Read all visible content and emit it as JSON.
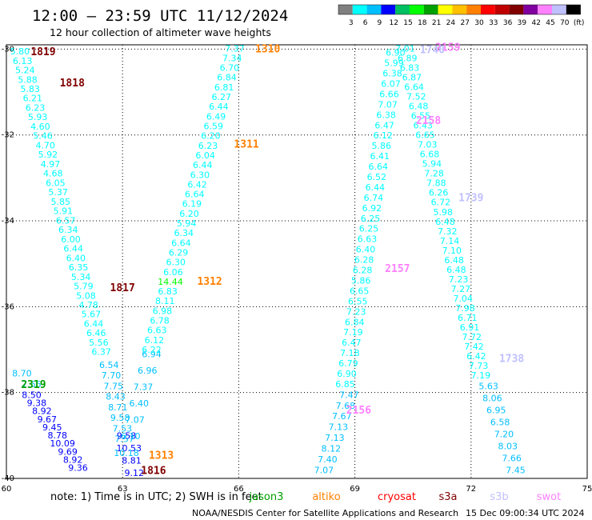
{
  "header": {
    "title": "12:00 — 23:59 UTC 11/12/2024",
    "subtitle": "12 hour collection of altimeter wave heights"
  },
  "colorbar": {
    "labels": [
      "3",
      "6",
      "9",
      "12",
      "15",
      "18",
      "21",
      "24",
      "27",
      "30",
      "33",
      "36",
      "39",
      "42",
      "45",
      "70",
      "(ft)"
    ],
    "colors": [
      "#808080",
      "#00ffff",
      "#00bfff",
      "#0000ff",
      "#00bf60",
      "#00ff00",
      "#00a000",
      "#ffff00",
      "#ffc000",
      "#ff8000",
      "#ff0000",
      "#c00000",
      "#800000",
      "#8000a0",
      "#ff80ff",
      "#c0c0ff",
      "#000000"
    ]
  },
  "axes": {
    "lon_ticks": [
      "60",
      "63",
      "66",
      "69",
      "72",
      "75"
    ],
    "lat_ticks": [
      "-30",
      "-32",
      "-34",
      "-36",
      "-38",
      "-40"
    ]
  },
  "passes": [
    {
      "id": "1819",
      "color": "#800000",
      "lon": 60.95,
      "lat": -30.05
    },
    {
      "id": "1818",
      "color": "#800000",
      "lon": 61.7,
      "lat": -30.78
    },
    {
      "id": "1817",
      "color": "#800000",
      "lon": 63.0,
      "lat": -35.55
    },
    {
      "id": "1816",
      "color": "#800000",
      "lon": 63.8,
      "lat": -39.8
    },
    {
      "id": "2319",
      "color": "#00a000",
      "lon": 60.7,
      "lat": -37.8
    },
    {
      "id": "1310",
      "color": "#ff8000",
      "lon": 66.75,
      "lat": -29.98
    },
    {
      "id": "1311",
      "color": "#ff8000",
      "lon": 66.2,
      "lat": -32.2
    },
    {
      "id": "1312",
      "color": "#ff8000",
      "lon": 65.25,
      "lat": -35.4
    },
    {
      "id": "1313",
      "color": "#ff8000",
      "lon": 64.0,
      "lat": -39.45
    },
    {
      "id": "2159",
      "color": "#ff80ff",
      "lon": 71.4,
      "lat": -29.95
    },
    {
      "id": "2158",
      "color": "#ff80ff",
      "lon": 70.9,
      "lat": -31.65
    },
    {
      "id": "2157",
      "color": "#ff80ff",
      "lon": 70.1,
      "lat": -35.1
    },
    {
      "id": "2156",
      "color": "#ff80ff",
      "lon": 69.1,
      "lat": -38.4
    },
    {
      "id": "1740",
      "color": "#c0c0ff",
      "lon": 71.0,
      "lat": -30.0
    },
    {
      "id": "1739",
      "color": "#c0c0ff",
      "lon": 72.0,
      "lat": -33.45
    },
    {
      "id": "1738",
      "color": "#c0c0ff",
      "lon": 73.05,
      "lat": -37.2
    }
  ],
  "tracks": [
    {
      "color": "#00ffff",
      "lon_start": 60.35,
      "lat_start": -30.05,
      "lon_end": 62.45,
      "lat_end": -37.05,
      "values": [
        "5.80",
        "6.13",
        "5.24",
        "5.88",
        "5.83",
        "6.21",
        "6.23",
        "5.93",
        "4.60",
        "5.46",
        "4.70",
        "5.92",
        "4.97",
        "4.68",
        "6.05",
        "5.37",
        "5.85",
        "5.91",
        "6.57",
        "6.34",
        "6.00",
        "6.44",
        "6.40",
        "6.35",
        "5.34",
        "5.79",
        "5.08",
        "4.78",
        "5.67",
        "6.44",
        "6.46",
        "5.56",
        "6.37"
      ]
    },
    {
      "color": "#00bfff",
      "lon_start": 60.4,
      "lat_start": -37.55,
      "lon_end": 60.65,
      "lat_end": -37.8,
      "values": [
        "8.70",
        "7.55"
      ]
    },
    {
      "color": "#00bfff",
      "lon_start": 62.65,
      "lat_start": -37.35,
      "lon_end": 63.05,
      "lat_end": -39.08,
      "values": [
        "6.54",
        "7.70",
        "7.75",
        "8.43",
        "8.71",
        "9.58",
        "7.53",
        "7.57"
      ]
    },
    {
      "color": "#0000ff",
      "lon_start": 60.65,
      "lat_start": -38.05,
      "lon_end": 61.85,
      "lat_end": -39.75,
      "values": [
        "8.50",
        "9.38",
        "8.92",
        "9.67",
        "9.45",
        "8.78",
        "10.09",
        "9.69",
        "8.92",
        "9.36"
      ]
    },
    {
      "color": "#0000ff",
      "lon_start": 63.1,
      "lat_start": -39.0,
      "lon_end": 63.3,
      "lat_end": -39.87,
      "values": [
        "9.58",
        "10.53",
        "8.81",
        "9.12"
      ]
    },
    {
      "color": "#00bfff",
      "lon_start": 63.75,
      "lat_start": -37.1,
      "lon_end": 63.1,
      "lat_end": -39.4,
      "values": [
        "6.94",
        "6.96",
        "7.37",
        "6.40",
        "7.07",
        "6.10",
        "10.18"
      ]
    },
    {
      "color": "#00ffff",
      "lon_start": 65.9,
      "lat_start": -29.98,
      "lon_end": 63.75,
      "lat_end": -37.0,
      "values": [
        "7.37",
        "7.34",
        "6.70",
        "6.84",
        "6.81",
        "6.27",
        "6.44",
        "6.49",
        "6.59",
        "6.20",
        "6.23",
        "6.04",
        "6.44",
        "6.30",
        "6.42",
        "6.64",
        "6.19",
        "6.20",
        "5.94",
        "6.34",
        "6.64",
        "6.29",
        "6.30",
        "6.06",
        "14.44",
        "6.83",
        "8.11",
        "6.98",
        "6.78",
        "6.63",
        "6.12",
        "6.22"
      ]
    },
    {
      "color": "#00ffff",
      "lon_start": 70.05,
      "lat_start": -30.08,
      "lon_end": 68.75,
      "lat_end": -37.8,
      "values": [
        "6.90",
        "5.99",
        "6.38",
        "6.07",
        "6.66",
        "7.07",
        "6.38",
        "6.47",
        "6.12",
        "5.86",
        "6.41",
        "6.64",
        "6.52",
        "6.44",
        "6.74",
        "6.92",
        "6.25",
        "6.25",
        "6.63",
        "6.40",
        "6.28",
        "6.28",
        "5.86",
        "6.65",
        "6.55",
        "7.23",
        "6.84",
        "7.19",
        "6.47",
        "7.18",
        "6.79",
        "6.90",
        "6.85"
      ]
    },
    {
      "color": "#00bfff",
      "lon_start": 68.85,
      "lat_start": -38.05,
      "lon_end": 68.2,
      "lat_end": -39.8,
      "values": [
        "7.47",
        "7.68",
        "7.67",
        "7.13",
        "7.13",
        "8.12",
        "7.40",
        "7.07"
      ]
    },
    {
      "color": "#00ffff",
      "lon_start": 70.3,
      "lat_start": -29.98,
      "lon_end": 72.25,
      "lat_end": -37.6,
      "values": [
        "7.01",
        "6.89",
        "6.83",
        "6.87",
        "6.64",
        "7.52",
        "6.48",
        "6.55",
        "6.43",
        "6.65",
        "7.03",
        "6.68",
        "5.94",
        "7.28",
        "7.88",
        "6.26",
        "6.72",
        "5.98",
        "6.48",
        "7.32",
        "7.14",
        "7.10",
        "6.48",
        "6.48",
        "7.23",
        "7.27",
        "7.04",
        "7.98",
        "6.71",
        "6.91",
        "7.72",
        "7.42",
        "6.42",
        "7.73",
        "7.19"
      ]
    },
    {
      "color": "#00bfff",
      "lon_start": 72.45,
      "lat_start": -37.85,
      "lon_end": 73.15,
      "lat_end": -39.8,
      "values": [
        "5.63",
        "8.06",
        "6.95",
        "6.58",
        "7.20",
        "8.03",
        "7.66",
        "7.45"
      ]
    }
  ],
  "footer": {
    "note": "note:  1) Time is in UTC; 2) SWH is in feet",
    "sat_legend": [
      {
        "name": "jason3",
        "color": "#00a000"
      },
      {
        "name": "altiko",
        "color": "#ff8000"
      },
      {
        "name": "cryosat",
        "color": "#ff0000"
      },
      {
        "name": "s3a",
        "color": "#800000"
      },
      {
        "name": "s3b",
        "color": "#c0c0ff"
      },
      {
        "name": "swot",
        "color": "#ff80ff"
      }
    ],
    "credit": "NOAA/NESDIS Center for Satellite Applications and Research",
    "timestamp": "15 Dec 09:00:34 UTC 2024"
  }
}
